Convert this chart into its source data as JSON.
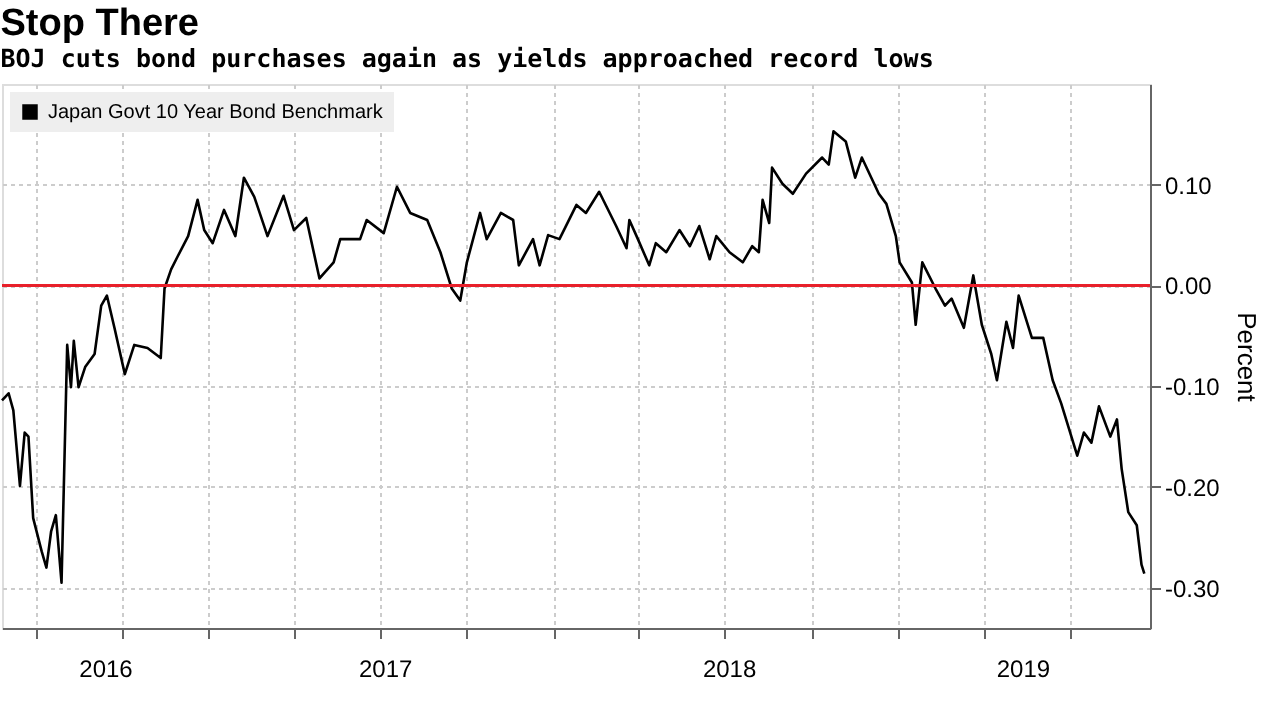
{
  "chart_data": {
    "type": "line",
    "title": "Stop There",
    "subtitle": "BOJ cuts bond purchases again as yields approached record lows",
    "ylabel": "Percent",
    "x": [
      "2016-05-27",
      "2016-06-03",
      "2016-06-08",
      "2016-06-15",
      "2016-06-20",
      "2016-06-24",
      "2016-06-29",
      "2016-07-08",
      "2016-07-13",
      "2016-07-18",
      "2016-07-23",
      "2016-07-29",
      "2016-08-04",
      "2016-08-08",
      "2016-08-11",
      "2016-08-16",
      "2016-08-23",
      "2016-09-02",
      "2016-09-09",
      "2016-09-15",
      "2016-09-23",
      "2016-10-04",
      "2016-10-14",
      "2016-10-28",
      "2016-11-11",
      "2016-11-15",
      "2016-11-22",
      "2016-11-29",
      "2016-12-10",
      "2016-12-20",
      "2016-12-27",
      "2017-01-05",
      "2017-01-17",
      "2017-01-29",
      "2017-02-07",
      "2017-02-18",
      "2017-03-04",
      "2017-03-21",
      "2017-04-01",
      "2017-04-14",
      "2017-04-28",
      "2017-05-13",
      "2017-05-20",
      "2017-06-10",
      "2017-06-17",
      "2017-07-05",
      "2017-07-19",
      "2017-08-02",
      "2017-08-20",
      "2017-09-03",
      "2017-09-15",
      "2017-09-24",
      "2017-10-01",
      "2017-10-15",
      "2017-10-22",
      "2017-11-06",
      "2017-11-19",
      "2017-11-25",
      "2017-12-10",
      "2017-12-17",
      "2017-12-26",
      "2018-01-07",
      "2018-01-25",
      "2018-02-04",
      "2018-02-18",
      "2018-03-08",
      "2018-03-19",
      "2018-03-22",
      "2018-03-31",
      "2018-04-12",
      "2018-04-19",
      "2018-04-30",
      "2018-05-14",
      "2018-05-25",
      "2018-06-04",
      "2018-06-15",
      "2018-06-22",
      "2018-07-06",
      "2018-07-20",
      "2018-07-30",
      "2018-08-06",
      "2018-08-10",
      "2018-08-17",
      "2018-08-20",
      "2018-08-31",
      "2018-09-11",
      "2018-09-25",
      "2018-10-12",
      "2018-10-19",
      "2018-10-24",
      "2018-11-06",
      "2018-11-16",
      "2018-11-23",
      "2018-12-11",
      "2018-12-19",
      "2018-12-29",
      "2019-01-02",
      "2019-01-15",
      "2019-01-19",
      "2019-01-26",
      "2019-02-09",
      "2019-02-19",
      "2019-02-26",
      "2019-03-11",
      "2019-03-21",
      "2019-03-30",
      "2019-04-09",
      "2019-04-15",
      "2019-04-25",
      "2019-05-02",
      "2019-05-08",
      "2019-05-22",
      "2019-06-03",
      "2019-06-13",
      "2019-06-22",
      "2019-07-09",
      "2019-07-16",
      "2019-07-24",
      "2019-08-01",
      "2019-08-13",
      "2019-08-20",
      "2019-08-25",
      "2019-09-01",
      "2019-09-10",
      "2019-09-15",
      "2019-09-18"
    ],
    "series": [
      {
        "name": "Japan Govt 10 Year Bond Benchmark",
        "color": "#000000",
        "values": [
          -0.114,
          -0.107,
          -0.124,
          -0.199,
          -0.146,
          -0.15,
          -0.231,
          -0.264,
          -0.28,
          -0.244,
          -0.228,
          -0.295,
          -0.059,
          -0.101,
          -0.055,
          -0.101,
          -0.081,
          -0.068,
          -0.02,
          -0.01,
          -0.042,
          -0.088,
          -0.059,
          -0.062,
          -0.072,
          -0.003,
          0.016,
          0.029,
          0.049,
          0.085,
          0.055,
          0.042,
          0.075,
          0.049,
          0.107,
          0.088,
          0.049,
          0.089,
          0.055,
          0.067,
          0.007,
          0.023,
          0.046,
          0.046,
          0.065,
          0.052,
          0.098,
          0.072,
          0.065,
          0.033,
          -0.003,
          -0.015,
          0.023,
          0.072,
          0.046,
          0.072,
          0.065,
          0.02,
          0.046,
          0.02,
          0.05,
          0.046,
          0.08,
          0.072,
          0.093,
          0.059,
          0.037,
          0.065,
          0.046,
          0.02,
          0.042,
          0.033,
          0.055,
          0.039,
          0.059,
          0.026,
          0.049,
          0.033,
          0.023,
          0.039,
          0.033,
          0.085,
          0.062,
          0.117,
          0.101,
          0.091,
          0.111,
          0.127,
          0.12,
          0.153,
          0.143,
          0.107,
          0.127,
          0.091,
          0.081,
          0.049,
          0.023,
          0.003,
          -0.039,
          0.023,
          -0.003,
          -0.02,
          -0.013,
          -0.042,
          0.01,
          -0.039,
          -0.068,
          -0.094,
          -0.036,
          -0.062,
          -0.01,
          -0.052,
          -0.052,
          -0.094,
          -0.117,
          -0.169,
          -0.146,
          -0.156,
          -0.12,
          -0.15,
          -0.133,
          -0.182,
          -0.225,
          -0.238,
          -0.277,
          -0.286
        ]
      }
    ],
    "xlim": [
      "2016-05-27",
      "2019-09-24"
    ],
    "xticks": [
      {
        "value": "2016-07-01",
        "label": null
      },
      {
        "value": "2016-09-13",
        "label": "2016"
      },
      {
        "value": "2016-10-01",
        "label": null
      },
      {
        "value": "2017-01-01",
        "label": null
      },
      {
        "value": "2017-04-01",
        "label": null
      },
      {
        "value": "2017-07-01",
        "label": null
      },
      {
        "value": "2017-07-06",
        "label": "2017"
      },
      {
        "value": "2017-10-01",
        "label": null
      },
      {
        "value": "2018-01-01",
        "label": null
      },
      {
        "value": "2018-04-01",
        "label": null
      },
      {
        "value": "2018-07-01",
        "label": null
      },
      {
        "value": "2018-07-05",
        "label": "2018"
      },
      {
        "value": "2018-10-01",
        "label": null
      },
      {
        "value": "2019-01-01",
        "label": null
      },
      {
        "value": "2019-04-01",
        "label": null
      },
      {
        "value": "2019-05-12",
        "label": "2019"
      },
      {
        "value": "2019-07-01",
        "label": null
      }
    ],
    "ylim": [
      -0.34,
      0.2
    ],
    "yticks": [
      {
        "value": -0.3,
        "label": "-0.30"
      },
      {
        "value": -0.2,
        "label": "-0.20"
      },
      {
        "value": -0.1,
        "label": "-0.10"
      },
      {
        "value": 0,
        "label": "0.00"
      },
      {
        "value": 0.1,
        "label": "0.10"
      }
    ],
    "ref_lines": [
      {
        "axis": "y",
        "value": 0,
        "color": "#e8202a"
      }
    ],
    "grid": true,
    "legend": "top left",
    "line_style": "solid",
    "marker": "none"
  }
}
